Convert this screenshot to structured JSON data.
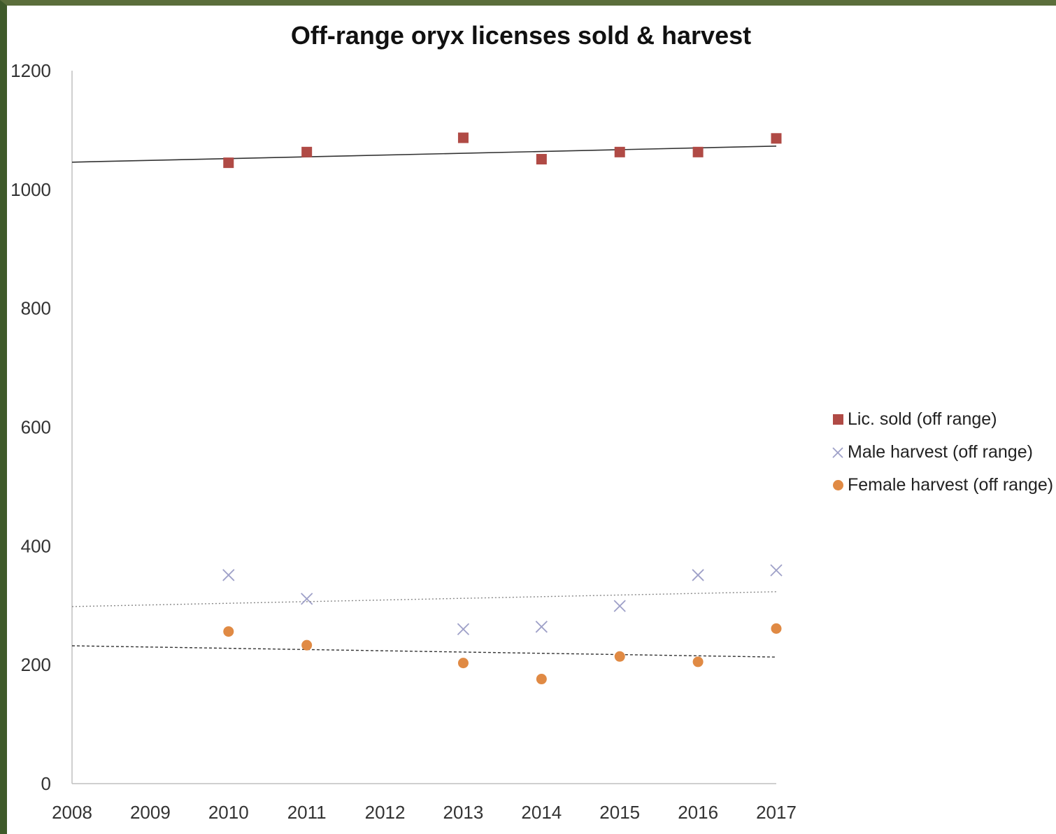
{
  "chart_data": {
    "type": "scatter",
    "title": "Off-range oryx licenses sold & harvest",
    "xlabel": "",
    "ylabel": "",
    "xlim": [
      2008,
      2017
    ],
    "ylim": [
      0,
      1200
    ],
    "x_ticks": [
      2008,
      2009,
      2010,
      2011,
      2012,
      2013,
      2014,
      2015,
      2016,
      2017
    ],
    "y_ticks": [
      0,
      200,
      400,
      600,
      800,
      1000,
      1200
    ],
    "grid": false,
    "legend_position": "right",
    "series": [
      {
        "name": "Lic. sold (off range)",
        "marker": "square",
        "color": "#b04a45",
        "x": [
          2010,
          2011,
          2013,
          2014,
          2015,
          2016,
          2017
        ],
        "y": [
          1045,
          1063,
          1087,
          1051,
          1063,
          1063,
          1086
        ],
        "trendline": {
          "style": "solid",
          "color": "#333333",
          "from": [
            2008,
            1046
          ],
          "to": [
            2017,
            1073
          ]
        }
      },
      {
        "name": "Male harvest (off range)",
        "marker": "x",
        "color": "#9ea0c8",
        "x": [
          2010,
          2011,
          2013,
          2014,
          2015,
          2016,
          2017
        ],
        "y": [
          351,
          311,
          260,
          264,
          299,
          351,
          359
        ],
        "trendline": {
          "style": "dotted",
          "color": "#888888",
          "from": [
            2008,
            298
          ],
          "to": [
            2017,
            323
          ]
        }
      },
      {
        "name": "Female harvest (off range)",
        "marker": "circle",
        "color": "#e08a44",
        "x": [
          2010,
          2011,
          2013,
          2014,
          2015,
          2016,
          2017
        ],
        "y": [
          256,
          233,
          203,
          176,
          214,
          205,
          261
        ],
        "trendline": {
          "style": "dashed",
          "color": "#333333",
          "from": [
            2008,
            232
          ],
          "to": [
            2017,
            213
          ]
        }
      }
    ]
  }
}
